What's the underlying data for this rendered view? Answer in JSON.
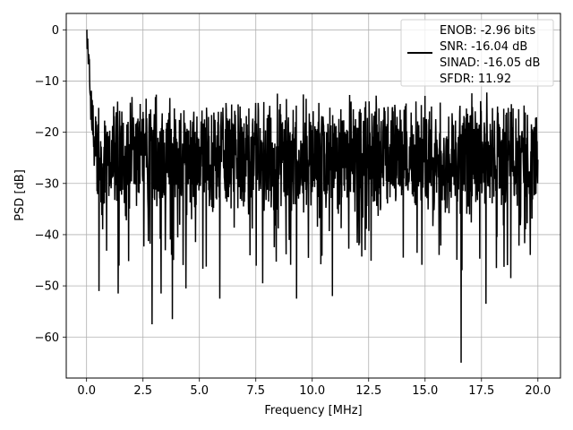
{
  "chart_data": {
    "type": "line",
    "xlabel": "Frequency [MHz]",
    "ylabel": "PSD [dB]",
    "xlim": [
      -0.9,
      21.0
    ],
    "ylim": [
      -68.0,
      3.2
    ],
    "x_ticks": [
      0.0,
      2.5,
      5.0,
      7.5,
      10.0,
      12.5,
      15.0,
      17.5,
      20.0
    ],
    "x_tick_labels": [
      "0.0",
      "2.5",
      "5.0",
      "7.5",
      "10.0",
      "12.5",
      "15.0",
      "17.5",
      "20.0"
    ],
    "y_ticks": [
      0,
      -10,
      -20,
      -30,
      -40,
      -50,
      -60
    ],
    "y_tick_labels": [
      "0",
      "−10",
      "−20",
      "−30",
      "−40",
      "−50",
      "−60"
    ],
    "grid": true,
    "legend_position": "top-right",
    "series": [
      {
        "name": "ENOB: -2.96 bits\nSNR: -16.04 dB\nSINAD: -16.05 dB\nSFDR: 11.92",
        "color": "#000000",
        "x_range": [
          0.0,
          20.0
        ],
        "num_points": 1600,
        "noise_mean_db": -25,
        "noise_band_db": [
          -35,
          -15
        ],
        "dc_peak": {
          "x": 0.0,
          "y": 0.0
        },
        "notable_minima": [
          {
            "x": 0.55,
            "y": -51
          },
          {
            "x": 1.4,
            "y": -51.5
          },
          {
            "x": 2.9,
            "y": -57.5
          },
          {
            "x": 3.3,
            "y": -51.5
          },
          {
            "x": 3.8,
            "y": -56.5
          },
          {
            "x": 4.4,
            "y": -50.5
          },
          {
            "x": 5.9,
            "y": -52.5
          },
          {
            "x": 7.8,
            "y": -49.5
          },
          {
            "x": 9.3,
            "y": -52.5
          },
          {
            "x": 10.9,
            "y": -52
          },
          {
            "x": 16.6,
            "y": -65
          },
          {
            "x": 17.7,
            "y": -53.5
          },
          {
            "x": 18.8,
            "y": -48.5
          }
        ]
      }
    ]
  }
}
